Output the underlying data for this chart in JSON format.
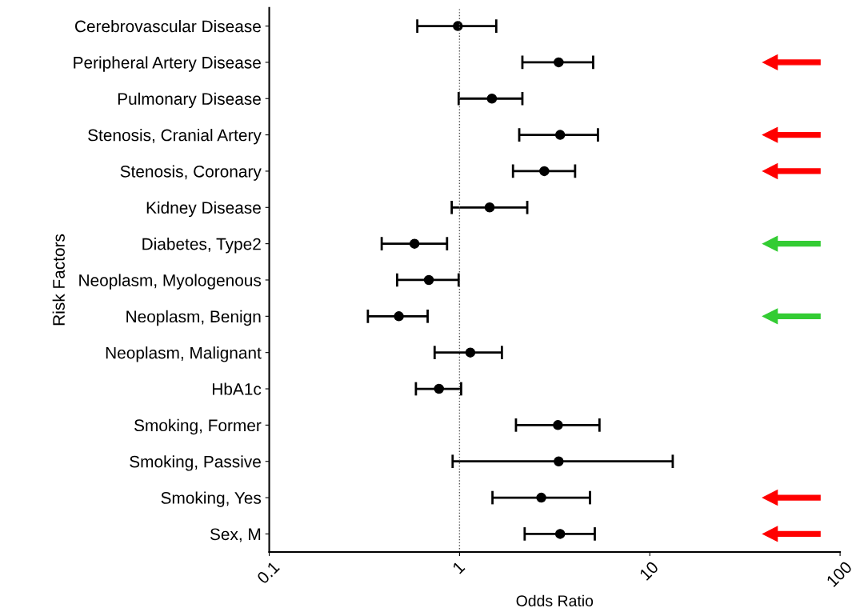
{
  "chart_data": {
    "type": "scatter",
    "orientation": "horizontal",
    "xlabel": "Odds Ratio",
    "ylabel": "Risk Factors",
    "categories": [
      "Cerebrovascular Disease",
      "Peripheral Artery Disease",
      "Pulmonary Disease",
      "Stenosis, Cranial Artery",
      "Stenosis, Coronary",
      "Kidney Disease",
      "Diabetes, Type2",
      "Neoplasm, Myologenous",
      "Neoplasm, Benign",
      "Neoplasm, Malignant",
      "HbA1c",
      "Smoking, Former",
      "Smoking, Passive",
      "Smoking, Yes",
      "Sex, M"
    ],
    "values": [
      0.98,
      3.32,
      1.48,
      3.38,
      2.79,
      1.44,
      0.58,
      0.69,
      0.48,
      1.14,
      0.78,
      3.29,
      3.32,
      2.69,
      3.38
    ],
    "errors": [
      [
        0.6,
        1.56
      ],
      [
        2.14,
        5.04
      ],
      [
        0.99,
        2.14
      ],
      [
        2.06,
        5.34
      ],
      [
        1.91,
        4.05
      ],
      [
        0.91,
        2.27
      ],
      [
        0.39,
        0.86
      ],
      [
        0.47,
        0.99
      ],
      [
        0.33,
        0.68
      ],
      [
        0.74,
        1.67
      ],
      [
        0.59,
        1.02
      ],
      [
        1.98,
        5.44
      ],
      [
        0.92,
        13.2
      ],
      [
        1.49,
        4.85
      ],
      [
        2.2,
        5.14
      ]
    ],
    "color": "#000000",
    "marker": "circle",
    "log": "x",
    "xlim": [
      0.1,
      100
    ],
    "xticks": [
      0.1,
      1,
      10,
      100
    ],
    "ref_lines": [
      {
        "axis": "x",
        "value": 1,
        "color": "#555555",
        "line_style": "dotted"
      }
    ],
    "grid": false
  }
}
